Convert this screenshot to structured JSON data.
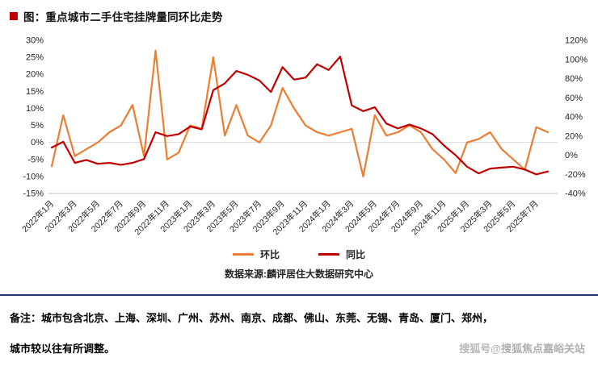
{
  "title": {
    "text": "图：重点城市二手住宅挂牌量同环比走势",
    "bullet_color": "#C00000"
  },
  "chart_data": {
    "type": "line",
    "x": [
      "2022年1月",
      "2022年2月",
      "2022年3月",
      "2022年4月",
      "2022年5月",
      "2022年6月",
      "2022年7月",
      "2022年8月",
      "2022年9月",
      "2022年10月",
      "2022年11月",
      "2022年12月",
      "2023年1月",
      "2023年2月",
      "2023年3月",
      "2023年4月",
      "2023年5月",
      "2023年6月",
      "2023年7月",
      "2023年8月",
      "2023年9月",
      "2023年10月",
      "2023年11月",
      "2023年12月",
      "2024年1月",
      "2024年2月",
      "2024年3月",
      "2024年4月",
      "2024年5月",
      "2024年6月",
      "2024年7月",
      "2024年8月",
      "2024年9月",
      "2024年10月",
      "2024年11月",
      "2024年12月",
      "2025年1月",
      "2025年2月",
      "2025年3月",
      "2025年4月",
      "2025年5月",
      "2025年6月",
      "2025年7月",
      "2025年8月"
    ],
    "x_tick_every": 2,
    "series": [
      {
        "name": "环比",
        "axis": "left",
        "color": "#ED7D31",
        "values": [
          -7,
          8,
          -4,
          -2,
          0,
          3,
          5,
          11,
          -4,
          27,
          -5,
          -3,
          5,
          4,
          25,
          2,
          11,
          2,
          0,
          5,
          16,
          10,
          5,
          3,
          2,
          3,
          4,
          -10,
          8,
          2,
          3,
          5,
          3,
          -2,
          -5,
          -9,
          0,
          1,
          3,
          -2,
          -5,
          -8,
          4.5,
          3
        ]
      },
      {
        "name": "同比",
        "axis": "right",
        "color": "#C00000",
        "values": [
          8,
          14,
          -8,
          -5,
          -9,
          -8,
          -10,
          -8,
          -4,
          24,
          20,
          22,
          30,
          27,
          68,
          75,
          88,
          84,
          78,
          66,
          92,
          79,
          81,
          95,
          89,
          103,
          52,
          46,
          50,
          33,
          28,
          32,
          28,
          22,
          10,
          0,
          -12,
          -19,
          -14,
          -13,
          -12,
          -15,
          -20,
          -17
        ]
      }
    ],
    "left_axis": {
      "min": -15,
      "max": 30,
      "step": 5,
      "ticks": [
        "30%",
        "25%",
        "20%",
        "15%",
        "10%",
        "5%",
        "0%",
        "-5%",
        "-10%",
        "-15%"
      ]
    },
    "right_axis": {
      "min": -40,
      "max": 120,
      "step": 20,
      "ticks": [
        "120%",
        "100%",
        "80%",
        "60%",
        "40%",
        "20%",
        "0%",
        "-20%",
        "-40%"
      ]
    },
    "grid": "zero-line-only",
    "legend_position": "bottom",
    "source": "数据来源:麟评居住大数据研究中心"
  },
  "notes": {
    "line1": "备注：城市包含北京、上海、深圳、广州、苏州、南京、成都、佛山、东莞、无锡、青岛、厦门、郑州，",
    "line2": "城市较以往有所调整。"
  },
  "watermark": {
    "prefix": "搜狐号@",
    "name": "搜狐焦点嘉峪关站"
  }
}
